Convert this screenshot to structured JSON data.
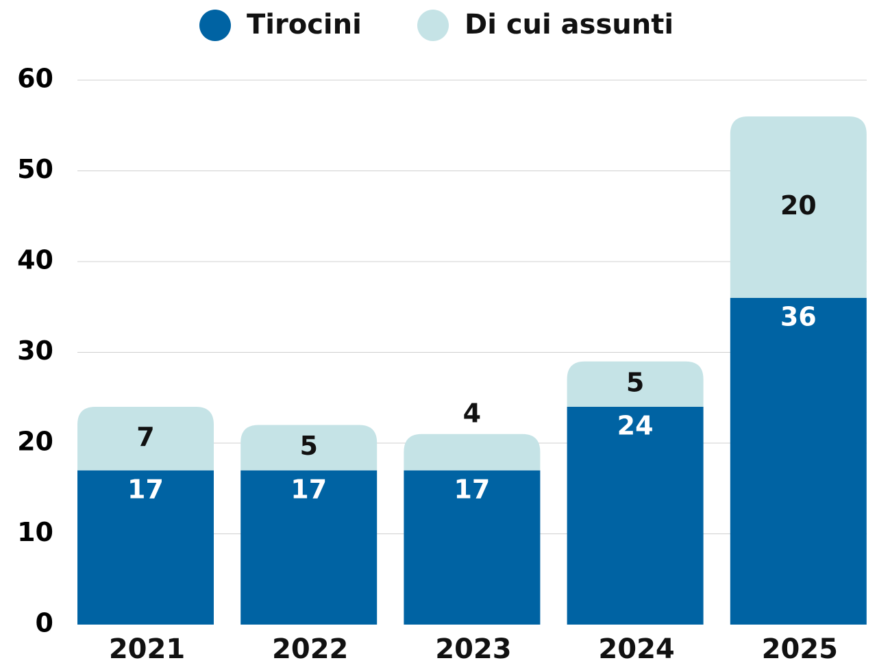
{
  "chart_data": {
    "type": "stacked_bar",
    "categories": [
      "2021",
      "2022",
      "2023",
      "2024",
      "2025"
    ],
    "series": [
      {
        "name": "Tirocini",
        "color": "#0063a3",
        "values": [
          17,
          17,
          17,
          24,
          36
        ]
      },
      {
        "name": "Di cui assunti",
        "color": "#c5e3e6",
        "values": [
          7,
          5,
          4,
          5,
          20
        ]
      }
    ],
    "ylim": [
      0,
      60
    ],
    "yticks": [
      0,
      10,
      20,
      30,
      40,
      50,
      60
    ],
    "grid": true,
    "legend": "top"
  }
}
